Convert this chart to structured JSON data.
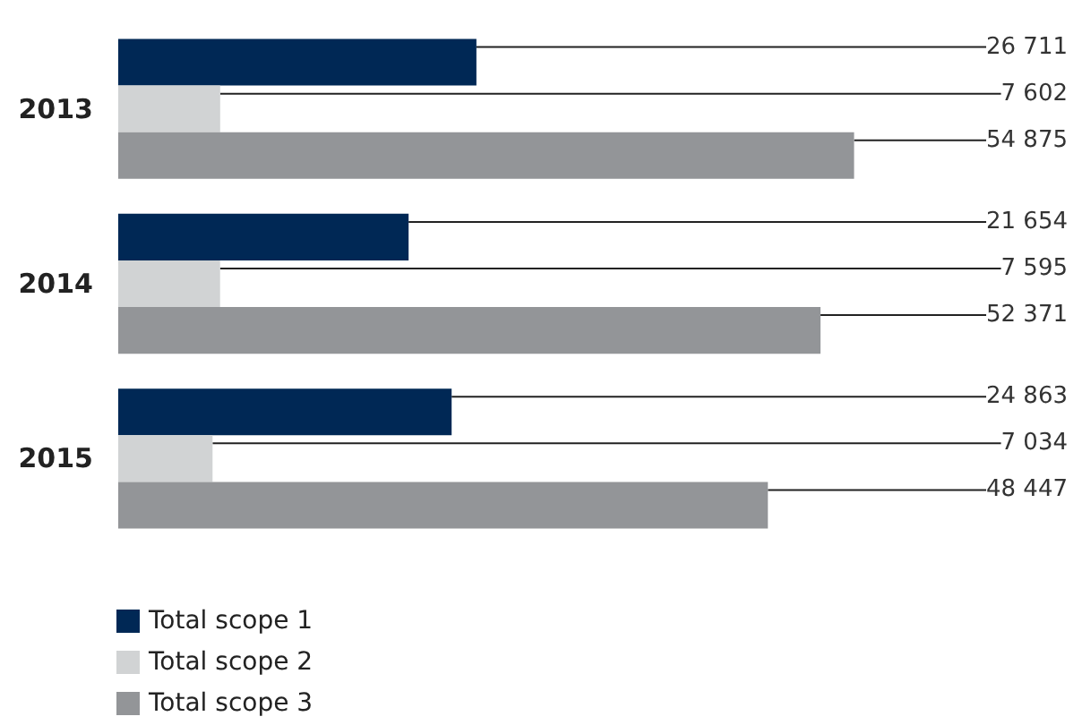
{
  "chart_data": {
    "type": "bar",
    "orientation": "horizontal",
    "categories": [
      "2013",
      "2014",
      "2015"
    ],
    "series": [
      {
        "name": "Total scope 1",
        "color": "#002855",
        "values": [
          26711,
          21654,
          24863
        ],
        "value_labels": [
          "26 711",
          "21 654",
          "24 863"
        ]
      },
      {
        "name": "Total scope 2",
        "color": "#d1d3d4",
        "values": [
          7602,
          7595,
          7034
        ],
        "value_labels": [
          "7 602",
          "7 595",
          "7 034"
        ]
      },
      {
        "name": "Total scope 3",
        "color": "#939598",
        "values": [
          54875,
          52371,
          48447
        ],
        "value_labels": [
          "54 875",
          "52 371",
          "48 447"
        ]
      }
    ],
    "legend": "bottom left"
  }
}
